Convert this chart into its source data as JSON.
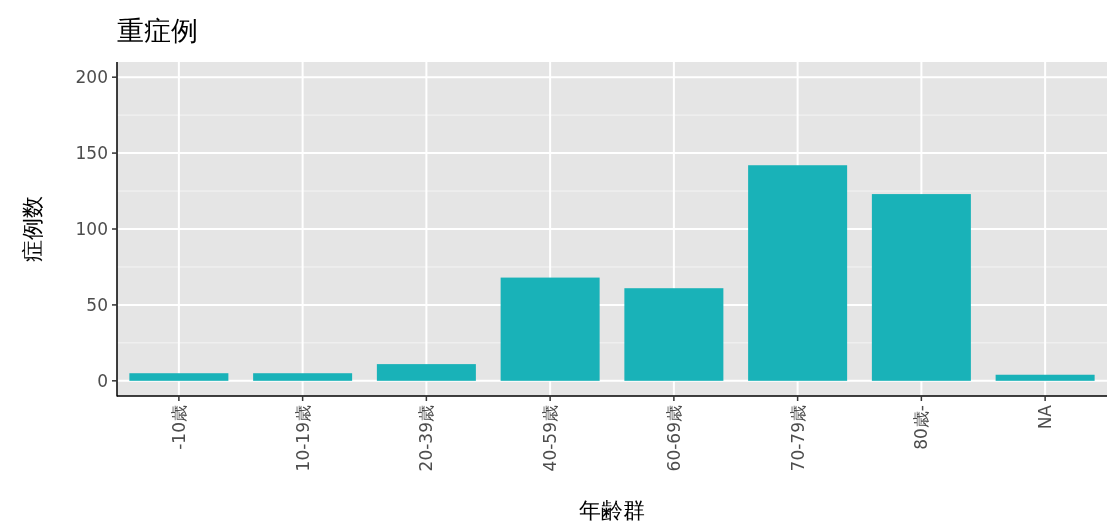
{
  "chart_data": {
    "type": "bar",
    "title": "重症例",
    "xlabel": "年齢群",
    "ylabel": "症例数",
    "categories": [
      "-10歳",
      "10-19歳",
      "20-39歳",
      "40-59歳",
      "60-69歳",
      "70-79歳",
      "80歳-",
      "NA"
    ],
    "values": [
      5,
      5,
      11,
      68,
      61,
      142,
      123,
      4
    ],
    "color": "#19b2b8",
    "ylim": [
      -10,
      210
    ],
    "yticks": [
      0,
      50,
      100,
      150,
      200
    ],
    "grid": true
  }
}
